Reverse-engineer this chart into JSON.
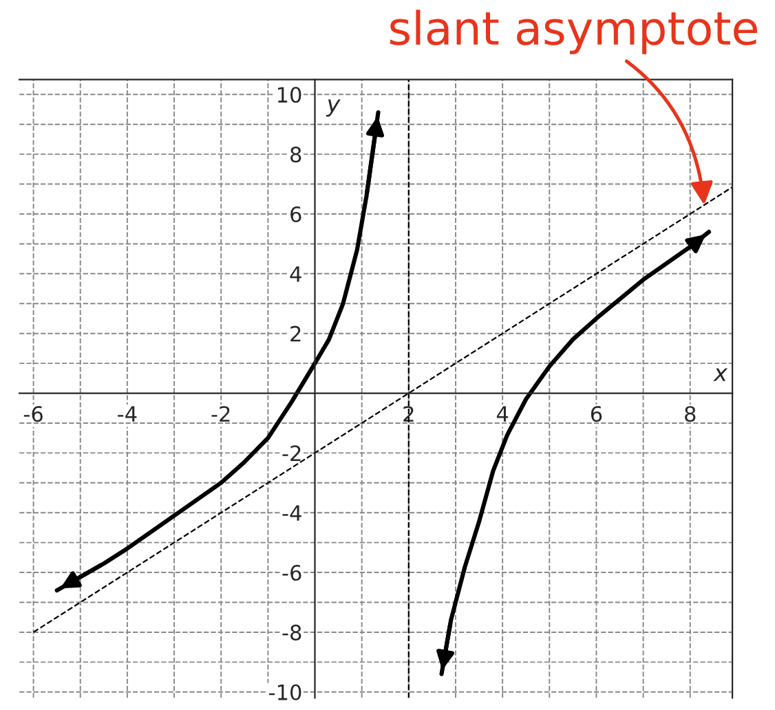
{
  "chart_data": {
    "type": "line",
    "xlabel": "x",
    "ylabel": "y",
    "xlim": [
      -6.3,
      8.9
    ],
    "ylim": [
      -10.2,
      10.5
    ],
    "xticks": [
      -6,
      {
        "value": -5,
        "label": null
      },
      -4,
      {
        "value": -3,
        "label": null
      },
      -2,
      {
        "value": -1,
        "label": null
      },
      {
        "value": 1,
        "label": null
      },
      2,
      {
        "value": 3,
        "label": null
      },
      4,
      {
        "value": 5,
        "label": null
      },
      6,
      {
        "value": 7,
        "label": null
      },
      8
    ],
    "yticks": [
      -10,
      {
        "value": -9,
        "label": null
      },
      -8,
      {
        "value": -7,
        "label": null
      },
      -6,
      {
        "value": -5,
        "label": null
      },
      -4,
      {
        "value": -3,
        "label": null
      },
      -2,
      {
        "value": -1,
        "label": null
      },
      {
        "value": 1,
        "label": null
      },
      2,
      {
        "value": 3,
        "label": null
      },
      4,
      {
        "value": 5,
        "label": null
      },
      6,
      {
        "value": 7,
        "label": null
      },
      8,
      {
        "value": 9,
        "label": null
      },
      10
    ],
    "grid": true,
    "series": [
      {
        "color": "#000000",
        "x": [
          -5.5,
          -4.5,
          -4,
          -3,
          -2,
          -1.5,
          -1,
          -0.5,
          0,
          0.3,
          0.6,
          0.9,
          1.1,
          1.35
        ],
        "values": [
          -6.6,
          -5.7,
          -5.2,
          -4.1,
          -3.0,
          -2.3,
          -1.5,
          -0.3,
          1.0,
          1.8,
          3.0,
          4.8,
          6.6,
          9.4
        ]
      },
      {
        "color": "#000000",
        "x": [
          2.7,
          2.9,
          3.2,
          3.5,
          3.8,
          4.1,
          4.5,
          5,
          5.5,
          6,
          7,
          8,
          8.4
        ],
        "values": [
          -9.4,
          -7.6,
          -5.8,
          -4.3,
          -2.6,
          -1.4,
          -0.2,
          0.9,
          1.8,
          2.5,
          3.8,
          4.9,
          5.4
        ]
      },
      {
        "color": "#000000",
        "x": [
          -6,
          8.9
        ],
        "values": [
          -8,
          6.9
        ],
        "line_style": "dashed"
      }
    ],
    "ref_lines": [
      {
        "axis": "x",
        "value": 2,
        "line_style": "dashed",
        "color": "#000000"
      }
    ],
    "annotations": [
      {
        "text": "slant asymptote",
        "x": 8.3,
        "y": 6.3
      }
    ]
  }
}
